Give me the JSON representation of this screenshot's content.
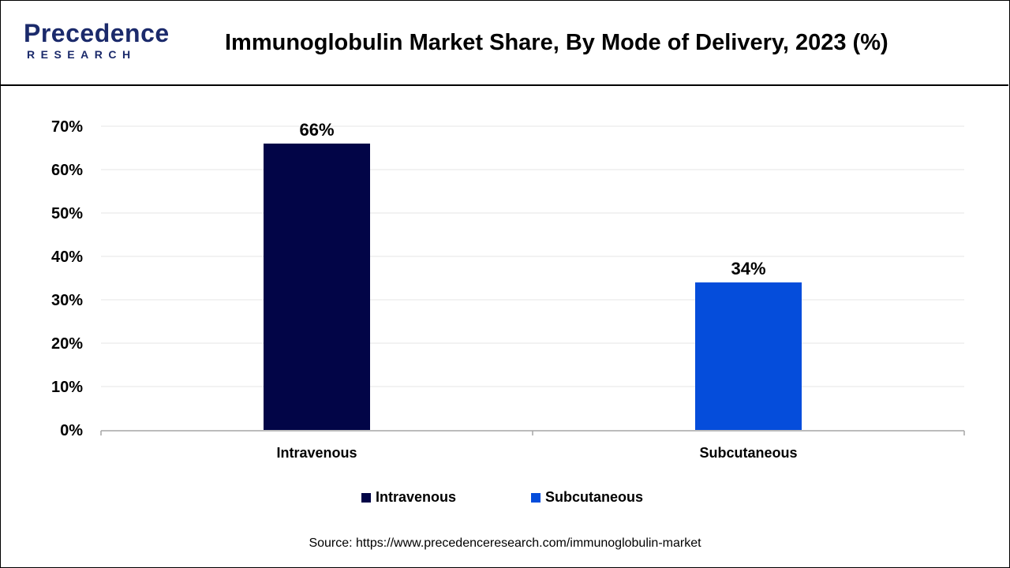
{
  "logo": {
    "name": "Precedence",
    "sub": "RESEARCH"
  },
  "title": "Immunoglobulin Market Share, By Mode of Delivery, 2023 (%)",
  "source": "Source: https://www.precedenceresearch.com/immunoglobulin-market",
  "colors": {
    "intravenous": "#020547",
    "subcutaneous": "#054ddb",
    "grid": "#e6e6e6",
    "axis": "#a6a6a6"
  },
  "chart_data": {
    "type": "bar",
    "categories": [
      "Intravenous",
      "Subcutaneous"
    ],
    "values": [
      66,
      34
    ],
    "value_labels": [
      "66%",
      "34%"
    ],
    "ylim": [
      0,
      70
    ],
    "yticks": [
      "0%",
      "10%",
      "20%",
      "30%",
      "40%",
      "50%",
      "60%",
      "70%"
    ],
    "grid": true,
    "legend": {
      "placement": "bottom",
      "entries": [
        "Intravenous",
        "Subcutaneous"
      ]
    }
  }
}
